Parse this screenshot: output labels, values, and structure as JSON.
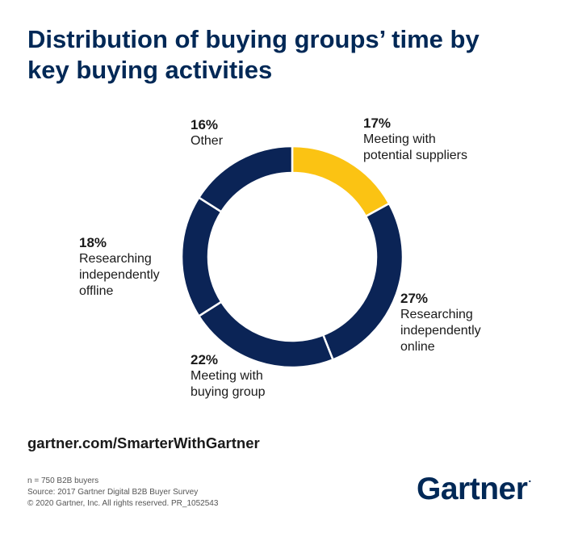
{
  "title_lines": [
    "Distribution of buying groups’ time by",
    "key buying activities"
  ],
  "colors": {
    "navy": "#0b2456",
    "gold": "#fbc313",
    "separator": "#ffffff",
    "title": "#002856"
  },
  "chart_data": {
    "type": "pie",
    "donut": true,
    "slices": [
      {
        "pct": "17%",
        "value": 17,
        "label": "Meeting with potential suppliers",
        "label_lines": [
          "Meeting with",
          "potential suppliers"
        ],
        "color": "#fbc313"
      },
      {
        "pct": "27%",
        "value": 27,
        "label": "Researching independently online",
        "label_lines": [
          "Researching",
          "independently",
          "online"
        ],
        "color": "#0b2456"
      },
      {
        "pct": "22%",
        "value": 22,
        "label": "Meeting with buying group",
        "label_lines": [
          "Meeting with",
          "buying group"
        ],
        "color": "#0b2456"
      },
      {
        "pct": "18%",
        "value": 18,
        "label": "Researching independently offline",
        "label_lines": [
          "Researching",
          "independently",
          "offline"
        ],
        "color": "#0b2456"
      },
      {
        "pct": "16%",
        "value": 16,
        "label": "Other",
        "label_lines": [
          "Other"
        ],
        "color": "#0b2456"
      }
    ]
  },
  "url": "gartner.com/SmarterWithGartner",
  "footnotes": [
    "n = 750 B2B buyers",
    "Source: 2017 Gartner Digital B2B Buyer Survey",
    "© 2020 Gartner, Inc. All rights reserved. PR_1052543"
  ],
  "logo": {
    "text": "Gartner",
    "mark": "."
  }
}
